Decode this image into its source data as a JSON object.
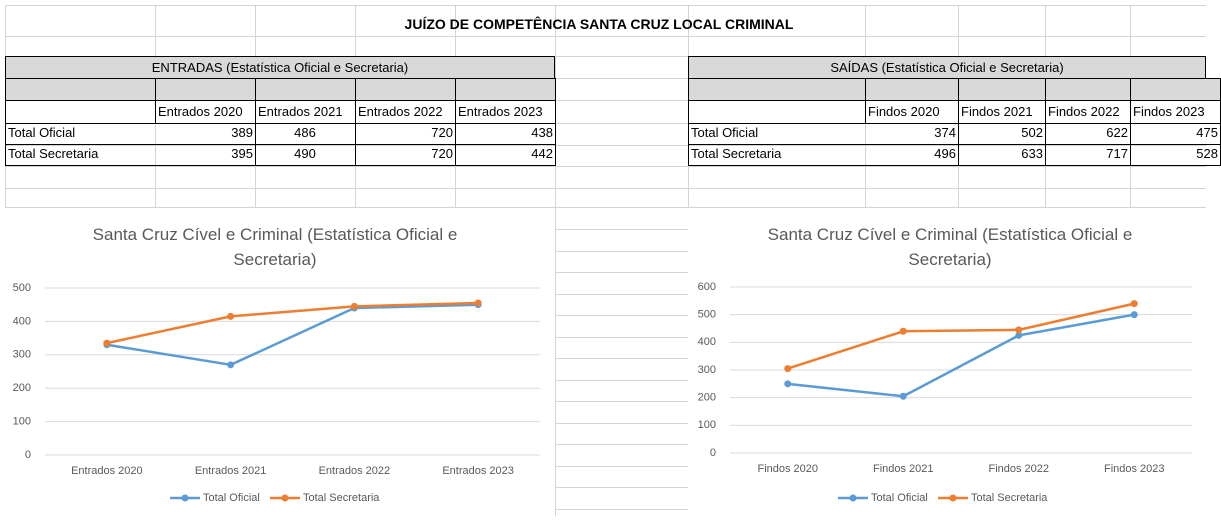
{
  "sheet_title": "JUÍZO DE COMPETÊNCIA SANTA CRUZ LOCAL CRIMINAL",
  "tables": [
    {
      "header": "ENTRADAS (Estatística Oficial e Secretaria)",
      "columns": [
        "Entrados 2020",
        "Entrados 2021",
        "Entrados 2022",
        "Entrados 2023"
      ],
      "rows": [
        {
          "label": "Total Oficial",
          "values": [
            389,
            486,
            720,
            438
          ]
        },
        {
          "label": "Total Secretaria",
          "values": [
            395,
            490,
            720,
            442
          ]
        }
      ]
    },
    {
      "header": "SAÍDAS (Estatística Oficial e Secretaria)",
      "columns": [
        "Findos 2020",
        "Findos 2021",
        "Findos 2022",
        "Findos 2023"
      ],
      "rows": [
        {
          "label": "Total Oficial",
          "values": [
            374,
            502,
            622,
            475
          ]
        },
        {
          "label": "Total Secretaria",
          "values": [
            496,
            633,
            717,
            528
          ]
        }
      ]
    }
  ],
  "chart_data": [
    {
      "type": "line",
      "title": "Santa Cruz Cível e Criminal (Estatística Oficial e Secretaria)",
      "categories": [
        "Entrados 2020",
        "Entrados 2021",
        "Entrados 2022",
        "Entrados 2023"
      ],
      "series": [
        {
          "name": "Total Oficial",
          "color": "#5b9bd5",
          "values": [
            330,
            270,
            440,
            450
          ]
        },
        {
          "name": "Total Secretaria",
          "color": "#ed7d31",
          "values": [
            335,
            415,
            445,
            455
          ]
        }
      ],
      "ylim": [
        0,
        500
      ],
      "yticks": [
        0,
        100,
        200,
        300,
        400,
        500
      ],
      "grid": true,
      "legend": "bottom"
    },
    {
      "type": "line",
      "title": "Santa Cruz Cível e Criminal (Estatística Oficial e Secretaria)",
      "categories": [
        "Findos 2020",
        "Findos 2021",
        "Findos 2022",
        "Findos 2023"
      ],
      "series": [
        {
          "name": "Total Oficial",
          "color": "#5b9bd5",
          "values": [
            250,
            205,
            425,
            500
          ]
        },
        {
          "name": "Total Secretaria",
          "color": "#ed7d31",
          "values": [
            305,
            440,
            445,
            540
          ]
        }
      ],
      "ylim": [
        0,
        600
      ],
      "yticks": [
        0,
        100,
        200,
        300,
        400,
        500,
        600
      ],
      "grid": true,
      "legend": "bottom"
    }
  ]
}
